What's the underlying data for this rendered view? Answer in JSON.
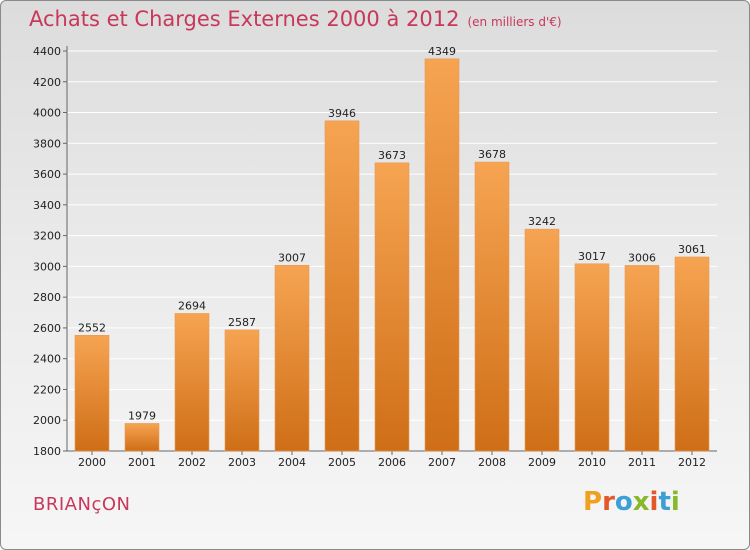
{
  "header": {
    "title": "Achats et Charges Externes 2000 à 2012",
    "subtitle": "(en milliers d'€)"
  },
  "footer": {
    "town": "BRIANçON",
    "logo_letters": [
      "P",
      "r",
      "o",
      "x",
      "i",
      "t",
      "i"
    ],
    "logo_colors": [
      "#f0a01e",
      "#e2582a",
      "#3c9fd6",
      "#88b82c",
      "#e2582a",
      "#3c9fd6",
      "#88b82c"
    ]
  },
  "colors": {
    "bar_top": "#f6a452",
    "bar_bottom": "#cf6e17",
    "title": "#c8385a",
    "grid": "#ffffff"
  },
  "chart_data": {
    "type": "bar",
    "title": "Achats et Charges Externes 2000 à 2012",
    "subtitle": "(en milliers d'€)",
    "xlabel": "",
    "ylabel": "",
    "categories": [
      "2000",
      "2001",
      "2002",
      "2003",
      "2004",
      "2005",
      "2006",
      "2007",
      "2008",
      "2009",
      "2010",
      "2011",
      "2012"
    ],
    "values": [
      2552,
      1979,
      2694,
      2587,
      3007,
      3946,
      3673,
      4349,
      3678,
      3242,
      3017,
      3006,
      3061
    ],
    "ylim": [
      1800,
      4400
    ],
    "yticks": [
      1800,
      2000,
      2200,
      2400,
      2600,
      2800,
      3000,
      3200,
      3400,
      3600,
      3800,
      4000,
      4200,
      4400
    ],
    "grid": true,
    "data_labels": true
  }
}
